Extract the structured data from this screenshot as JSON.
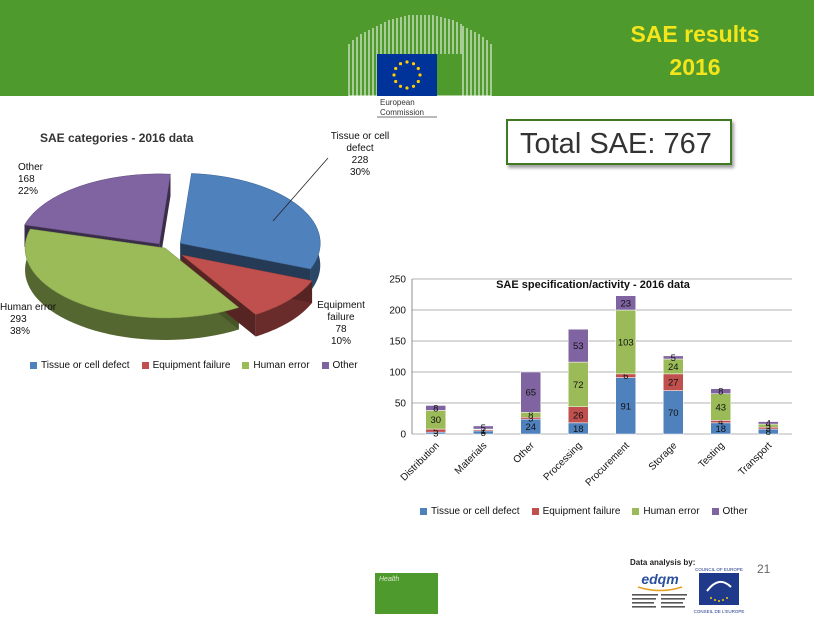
{
  "slide": {
    "title_line1": "SAE results",
    "title_line2": "2016",
    "org_line1": "European",
    "org_line2": "Commission",
    "total_sae": "Total SAE: 767",
    "footer_tag": "Health",
    "data_analysis": "Data analysis by:",
    "edqm_name": "edqm",
    "edqm_sub": "European Directorate | Direction européenne for the Quality | de la qualité of Medicines | du médicament & HealthCare | & soins de santé",
    "coe_top": "COUNCIL OF EUROPE",
    "coe_bottom": "CONSEIL DE L'EUROPE",
    "page_number": "21",
    "colors": {
      "green": "#4f9a2d",
      "yellow": "#f5e61c"
    }
  },
  "chart_data": [
    {
      "type": "pie",
      "title": "SAE categories - 2016 data",
      "slices": [
        {
          "name": "Tissue or cell defect",
          "line1": "Tissue or cell",
          "line2": "defect",
          "value": 228,
          "pct": "30%",
          "color": "#4f81bd"
        },
        {
          "name": "Equipment failure",
          "line1": "Equipment",
          "line2": "failure",
          "value": 78,
          "pct": "10%",
          "color": "#c0504d"
        },
        {
          "name": "Human error",
          "line1": "Human error",
          "line2": "",
          "value": 293,
          "pct": "38%",
          "color": "#9bbb59"
        },
        {
          "name": "Other",
          "line1": "Other",
          "line2": "",
          "value": 168,
          "pct": "22%",
          "color": "#8064a2"
        }
      ],
      "legend": [
        "Tissue or cell defect",
        "Equipment failure",
        "Human error",
        "Other"
      ],
      "legend_position": "bottom"
    },
    {
      "type": "bar",
      "stacked": true,
      "title": "SAE specification/activity - 2016 data",
      "categories": [
        "Distribution",
        "Materials",
        "Other",
        "Processing",
        "Procurement",
        "Storage",
        "Testing",
        "Transport"
      ],
      "series": [
        {
          "name": "Tissue or cell defect",
          "color": "#4f81bd",
          "values": [
            3,
            5,
            24,
            18,
            91,
            70,
            18,
            8
          ]
        },
        {
          "name": "Equipment failure",
          "color": "#c0504d",
          "values": [
            5,
            2,
            3,
            26,
            6,
            27,
            4,
            3
          ]
        },
        {
          "name": "Human error",
          "color": "#9bbb59",
          "values": [
            30,
            1,
            8,
            72,
            103,
            24,
            43,
            5
          ]
        },
        {
          "name": "Other",
          "color": "#8064a2",
          "values": [
            8,
            5,
            65,
            53,
            23,
            5,
            8,
            4
          ]
        }
      ],
      "ylim": [
        0,
        250
      ],
      "yticks": [
        0,
        50,
        100,
        150,
        200,
        250
      ],
      "grid": true,
      "legend_position": "bottom"
    }
  ]
}
